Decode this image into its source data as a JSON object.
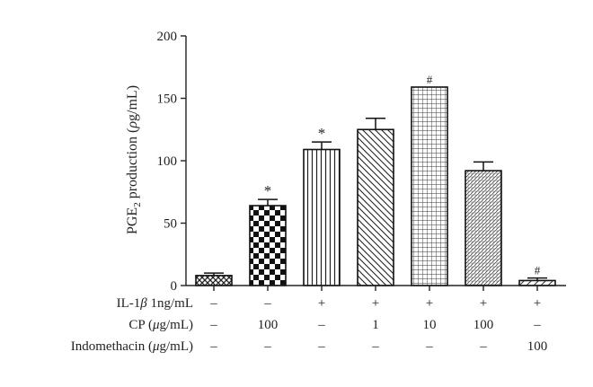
{
  "chart_data": {
    "type": "bar",
    "ylabel_main": "PGE",
    "ylabel_sub": "2",
    "ylabel_rest": " production (",
    "ylabel_unit_italic": "ρ",
    "ylabel_unit_rest": "g/mL)",
    "ylim": [
      0,
      200
    ],
    "yticks": [
      "0",
      "50",
      "100",
      "150",
      "200"
    ],
    "ytick_values": [
      0,
      50,
      100,
      150,
      200
    ],
    "bars": [
      {
        "value": 8,
        "error": 2,
        "pattern": "cross",
        "marker": ""
      },
      {
        "value": 64,
        "error": 5,
        "pattern": "checker",
        "marker": "*"
      },
      {
        "value": 109,
        "error": 6,
        "pattern": "vertical",
        "marker": "*"
      },
      {
        "value": 125,
        "error": 9,
        "pattern": "diagonal",
        "marker": ""
      },
      {
        "value": 159,
        "error": 0,
        "pattern": "grid",
        "marker": "#"
      },
      {
        "value": 92,
        "error": 7,
        "pattern": "dots",
        "marker": ""
      },
      {
        "value": 4,
        "error": 2,
        "pattern": "diagonal-sparse",
        "marker": "#"
      }
    ],
    "conditions": [
      {
        "label_parts": [
          [
            "IL-1",
            false
          ],
          [
            "β",
            true
          ],
          [
            " 1ng/mL",
            false
          ]
        ],
        "values": [
          "–",
          "–",
          "+",
          "+",
          "+",
          "+",
          "+"
        ]
      },
      {
        "label_parts": [
          [
            "CP (",
            false
          ],
          [
            "μ",
            true
          ],
          [
            "g/mL)",
            false
          ]
        ],
        "values": [
          "–",
          "100",
          "–",
          "1",
          "10",
          "100",
          "–"
        ]
      },
      {
        "label_parts": [
          [
            "Indomethacin (",
            false
          ],
          [
            "μ",
            true
          ],
          [
            "g/mL)",
            false
          ]
        ],
        "values": [
          "–",
          "–",
          "–",
          "–",
          "–",
          "–",
          "100"
        ]
      }
    ],
    "grid": false,
    "legend": "none"
  }
}
